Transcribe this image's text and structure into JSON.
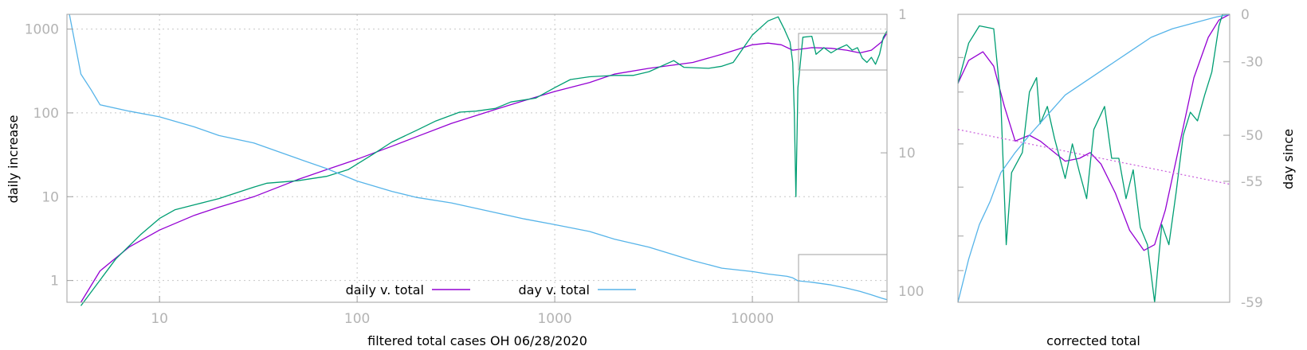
{
  "colors": {
    "daily": "#9400d3",
    "raw": "#009e73",
    "day": "#56b4e9",
    "fit": "#cc66dd",
    "grid": "#c8c8c8",
    "frame": "#a0a0a0",
    "ticklabel": "#b4b4b4"
  },
  "chart_data": [
    {
      "type": "line",
      "title": "",
      "xlabel": "filtered total cases OH 06/28/2020",
      "ylabel": "daily increase",
      "y2label": "",
      "xscale": "log",
      "yscale": "log",
      "y2scale": "log-reversed",
      "xlim": [
        3.4,
        48000
      ],
      "ylim": [
        0.55,
        1500
      ],
      "y2lim": [
        1,
        120
      ],
      "grid": true,
      "legend_position": "bottom-center",
      "x_ticks": [
        "10",
        "100",
        "1000",
        "10000"
      ],
      "y_ticks": [
        "1",
        "10",
        "100",
        "1000"
      ],
      "y2_ticks": [
        "1",
        "10",
        "100"
      ],
      "series": [
        {
          "name": "daily v. total",
          "axis": "y",
          "color_key": "daily",
          "points": [
            [
              4,
              0.55
            ],
            [
              5,
              1.3
            ],
            [
              7,
              2.5
            ],
            [
              10,
              4
            ],
            [
              15,
              6
            ],
            [
              20,
              7.5
            ],
            [
              30,
              10
            ],
            [
              50,
              16
            ],
            [
              70,
              21
            ],
            [
              100,
              28
            ],
            [
              150,
              40
            ],
            [
              200,
              52
            ],
            [
              300,
              75
            ],
            [
              500,
              110
            ],
            [
              700,
              140
            ],
            [
              1000,
              180
            ],
            [
              1500,
              230
            ],
            [
              2000,
              290
            ],
            [
              3000,
              340
            ],
            [
              5000,
              400
            ],
            [
              7000,
              500
            ],
            [
              10000,
              650
            ],
            [
              12000,
              680
            ],
            [
              14000,
              650
            ],
            [
              16000,
              560
            ],
            [
              20000,
              600
            ],
            [
              25000,
              590
            ],
            [
              30000,
              560
            ],
            [
              35000,
              520
            ],
            [
              40000,
              560
            ],
            [
              45000,
              700
            ],
            [
              48000,
              900
            ]
          ]
        },
        {
          "name": "",
          "axis": "y",
          "color_key": "raw",
          "points": [
            [
              4,
              0.5
            ],
            [
              6,
              1.8
            ],
            [
              8,
              3.5
            ],
            [
              10,
              5.5
            ],
            [
              12,
              7
            ],
            [
              15,
              8
            ],
            [
              20,
              9.5
            ],
            [
              30,
              13
            ],
            [
              35,
              14.5
            ],
            [
              50,
              15.5
            ],
            [
              70,
              17.5
            ],
            [
              90,
              21
            ],
            [
              120,
              32
            ],
            [
              150,
              45
            ],
            [
              200,
              62
            ],
            [
              250,
              80
            ],
            [
              330,
              102
            ],
            [
              400,
              105
            ],
            [
              500,
              113
            ],
            [
              600,
              135
            ],
            [
              800,
              150
            ],
            [
              1000,
              200
            ],
            [
              1200,
              250
            ],
            [
              1500,
              270
            ],
            [
              2000,
              280
            ],
            [
              2500,
              280
            ],
            [
              3000,
              310
            ],
            [
              4000,
              420
            ],
            [
              4500,
              350
            ],
            [
              6000,
              340
            ],
            [
              7000,
              360
            ],
            [
              8000,
              400
            ],
            [
              10000,
              850
            ],
            [
              12000,
              1250
            ],
            [
              13500,
              1400
            ],
            [
              14500,
              1000
            ],
            [
              15500,
              700
            ],
            [
              16000,
              400
            ],
            [
              16300,
              100
            ],
            [
              16600,
              10
            ],
            [
              17000,
              200
            ],
            [
              18000,
              800
            ],
            [
              20000,
              820
            ],
            [
              21000,
              500
            ],
            [
              23000,
              600
            ],
            [
              25000,
              520
            ],
            [
              27000,
              580
            ],
            [
              30000,
              650
            ],
            [
              32000,
              560
            ],
            [
              34000,
              600
            ],
            [
              36000,
              450
            ],
            [
              38000,
              400
            ],
            [
              40000,
              460
            ],
            [
              42000,
              380
            ],
            [
              44000,
              500
            ],
            [
              46000,
              800
            ],
            [
              48000,
              950
            ]
          ]
        },
        {
          "name": "day v. total",
          "axis": "y2",
          "color_key": "day",
          "points": [
            [
              3.5,
              1
            ],
            [
              4,
              2.7
            ],
            [
              4.5,
              3.5
            ],
            [
              5,
              4.5
            ],
            [
              7,
              5
            ],
            [
              10,
              5.5
            ],
            [
              15,
              6.5
            ],
            [
              20,
              7.5
            ],
            [
              30,
              8.5
            ],
            [
              50,
              11
            ],
            [
              70,
              13
            ],
            [
              100,
              16
            ],
            [
              150,
              19
            ],
            [
              200,
              21
            ],
            [
              300,
              23
            ],
            [
              500,
              27
            ],
            [
              700,
              30
            ],
            [
              1000,
              33
            ],
            [
              1500,
              37
            ],
            [
              2000,
              42
            ],
            [
              3000,
              48
            ],
            [
              5000,
              60
            ],
            [
              7000,
              68
            ],
            [
              10000,
              72
            ],
            [
              12000,
              75
            ],
            [
              15000,
              78
            ],
            [
              16000,
              80
            ],
            [
              17000,
              84
            ],
            [
              20000,
              86
            ],
            [
              25000,
              90
            ],
            [
              30000,
              95
            ],
            [
              35000,
              100
            ],
            [
              40000,
              106
            ],
            [
              45000,
              112
            ],
            [
              48000,
              115
            ]
          ]
        }
      ]
    },
    {
      "type": "line",
      "title": "",
      "xlabel": "corrected total",
      "ylabel": "",
      "y2label": "day since",
      "xlim": [
        0,
        1
      ],
      "ylim": [
        0,
        1
      ],
      "y2lim": [
        -59,
        0
      ],
      "grid": false,
      "y2_ticks": [
        "0",
        "-30",
        "-50",
        "-55",
        "-59"
      ],
      "series": [
        {
          "name": "",
          "axis": "y",
          "color_key": "daily",
          "points": [
            [
              0,
              0.76
            ],
            [
              0.03,
              0.84
            ],
            [
              0.07,
              0.87
            ],
            [
              0.1,
              0.82
            ],
            [
              0.13,
              0.68
            ],
            [
              0.16,
              0.56
            ],
            [
              0.2,
              0.58
            ],
            [
              0.23,
              0.56
            ],
            [
              0.27,
              0.52
            ],
            [
              0.3,
              0.49
            ],
            [
              0.34,
              0.5
            ],
            [
              0.37,
              0.52
            ],
            [
              0.4,
              0.48
            ],
            [
              0.44,
              0.38
            ],
            [
              0.48,
              0.25
            ],
            [
              0.52,
              0.18
            ],
            [
              0.55,
              0.2
            ],
            [
              0.58,
              0.32
            ],
            [
              0.62,
              0.55
            ],
            [
              0.66,
              0.78
            ],
            [
              0.7,
              0.92
            ],
            [
              0.73,
              0.98
            ],
            [
              0.76,
              1.0
            ]
          ]
        },
        {
          "name": "",
          "axis": "y",
          "color_key": "raw",
          "points": [
            [
              0,
              0.76
            ],
            [
              0.03,
              0.9
            ],
            [
              0.06,
              0.96
            ],
            [
              0.1,
              0.95
            ],
            [
              0.12,
              0.7
            ],
            [
              0.135,
              0.2
            ],
            [
              0.15,
              0.45
            ],
            [
              0.18,
              0.52
            ],
            [
              0.2,
              0.73
            ],
            [
              0.22,
              0.78
            ],
            [
              0.23,
              0.62
            ],
            [
              0.25,
              0.68
            ],
            [
              0.27,
              0.57
            ],
            [
              0.3,
              0.43
            ],
            [
              0.32,
              0.55
            ],
            [
              0.34,
              0.45
            ],
            [
              0.36,
              0.36
            ],
            [
              0.38,
              0.6
            ],
            [
              0.41,
              0.68
            ],
            [
              0.43,
              0.5
            ],
            [
              0.45,
              0.5
            ],
            [
              0.47,
              0.36
            ],
            [
              0.49,
              0.46
            ],
            [
              0.51,
              0.26
            ],
            [
              0.53,
              0.2
            ],
            [
              0.55,
              0.0
            ],
            [
              0.57,
              0.27
            ],
            [
              0.59,
              0.2
            ],
            [
              0.61,
              0.38
            ],
            [
              0.63,
              0.58
            ],
            [
              0.65,
              0.66
            ],
            [
              0.67,
              0.63
            ],
            [
              0.69,
              0.72
            ],
            [
              0.71,
              0.8
            ],
            [
              0.73,
              0.96
            ],
            [
              0.74,
              1.0
            ],
            [
              0.76,
              1.0
            ]
          ]
        },
        {
          "name": "",
          "axis": "y",
          "color_key": "day",
          "points": [
            [
              0,
              0.0
            ],
            [
              0.03,
              0.15
            ],
            [
              0.06,
              0.27
            ],
            [
              0.09,
              0.35
            ],
            [
              0.12,
              0.45
            ],
            [
              0.16,
              0.52
            ],
            [
              0.2,
              0.58
            ],
            [
              0.25,
              0.65
            ],
            [
              0.3,
              0.72
            ],
            [
              0.36,
              0.77
            ],
            [
              0.42,
              0.82
            ],
            [
              0.48,
              0.87
            ],
            [
              0.54,
              0.92
            ],
            [
              0.6,
              0.95
            ],
            [
              0.66,
              0.97
            ],
            [
              0.72,
              0.99
            ],
            [
              0.76,
              1.0
            ]
          ]
        },
        {
          "name": "",
          "axis": "y",
          "color_key": "fit",
          "dashed": true,
          "points": [
            [
              0,
              0.6
            ],
            [
              0.76,
              0.41
            ]
          ]
        }
      ]
    }
  ]
}
